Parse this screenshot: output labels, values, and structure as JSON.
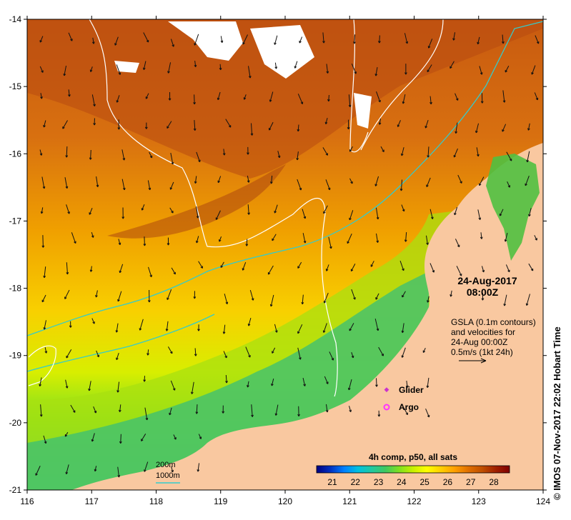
{
  "map": {
    "lon_ticks": [
      "116",
      "117",
      "118",
      "119",
      "120",
      "121",
      "122",
      "123",
      "124"
    ],
    "lat_ticks": [
      "-14",
      "-15",
      "-16",
      "-17",
      "-18",
      "-19",
      "-20",
      "-21"
    ],
    "lon_range": [
      116,
      124
    ],
    "lat_range": [
      -21,
      -14
    ]
  },
  "header": {
    "date": "24-Aug-2017",
    "time": "08:00Z"
  },
  "info": {
    "line1": "GSLA (0.1m contours)",
    "line2": "and velocities for",
    "line3": "24-Aug 00:00Z",
    "line4": "0.5m/s (1kt 24h)"
  },
  "legend": {
    "glider_label": "Glider",
    "argo_label": "Argo",
    "glider_color": "#cc33cc",
    "argo_color": "#ff33ff"
  },
  "depth_key": {
    "label_200": "200m",
    "label_1000": "1000m",
    "color_1000": "#33cccc"
  },
  "colorbar": {
    "title": "4h comp, p50, all sats",
    "ticks": [
      "21",
      "22",
      "23",
      "24",
      "25",
      "26",
      "27",
      "28"
    ],
    "colors": [
      "#000080",
      "#0030c0",
      "#0080ff",
      "#00c0e0",
      "#20c8a0",
      "#40c860",
      "#80e020",
      "#c8f000",
      "#ffff00",
      "#ffd000",
      "#ffa000",
      "#e07000",
      "#c05000",
      "#a02000",
      "#800000"
    ]
  },
  "credit": "©  IMOS 07-Nov-2017 22:02 Hobart Time"
}
